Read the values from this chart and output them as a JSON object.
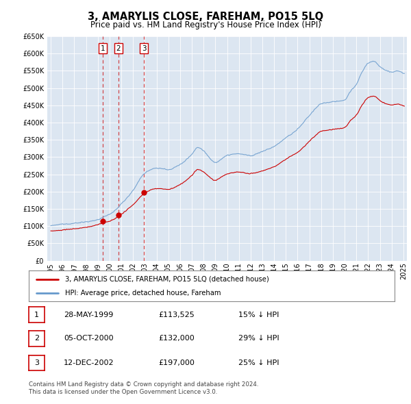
{
  "title": "3, AMARYLIS CLOSE, FAREHAM, PO15 5LQ",
  "subtitle": "Price paid vs. HM Land Registry's House Price Index (HPI)",
  "transactions": [
    {
      "num": 1,
      "date_str": "28-MAY-1999",
      "date_x": 1999.41,
      "price": 113525,
      "label": "15% ↓ HPI"
    },
    {
      "num": 2,
      "date_str": "05-OCT-2000",
      "date_x": 2000.75,
      "price": 132000,
      "label": "29% ↓ HPI"
    },
    {
      "num": 3,
      "date_str": "12-DEC-2002",
      "date_x": 2002.94,
      "price": 197000,
      "label": "25% ↓ HPI"
    }
  ],
  "legend_line1": "3, AMARYLIS CLOSE, FAREHAM, PO15 5LQ (detached house)",
  "legend_line2": "HPI: Average price, detached house, Fareham",
  "footnote1": "Contains HM Land Registry data © Crown copyright and database right 2024.",
  "footnote2": "This data is licensed under the Open Government Licence v3.0.",
  "background_color": "#ffffff",
  "plot_bg_color": "#dce6f1",
  "red_color": "#cc0000",
  "blue_color": "#6699cc",
  "ylim": [
    0,
    650000
  ],
  "yticks": [
    0,
    50000,
    100000,
    150000,
    200000,
    250000,
    300000,
    350000,
    400000,
    450000,
    500000,
    550000,
    600000,
    650000
  ],
  "xlim_start": 1994.7,
  "xlim_end": 2025.3
}
